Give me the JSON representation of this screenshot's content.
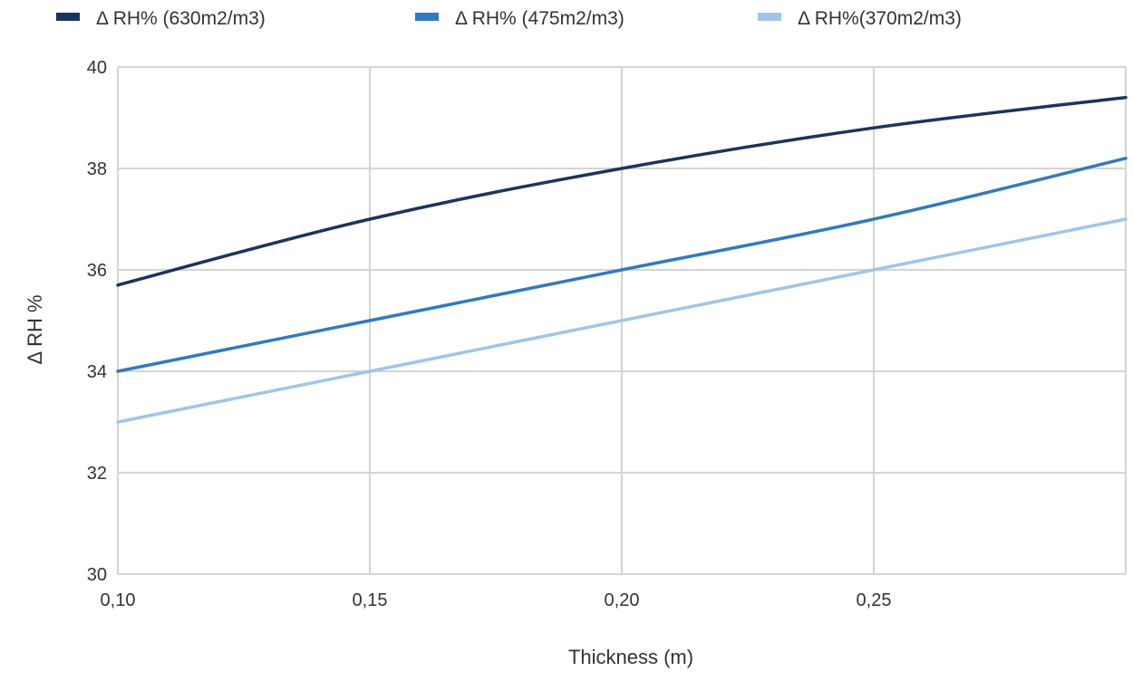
{
  "chart_data": {
    "type": "line",
    "title": "",
    "xlabel": "Thickness (m)",
    "ylabel": "Δ RH %",
    "x": [
      0.1,
      0.15,
      0.2,
      0.25,
      0.3
    ],
    "x_ticks": [
      0.1,
      0.15,
      0.2,
      0.25
    ],
    "x_tick_labels": [
      "0,10",
      "0,15",
      "0,20",
      "0,25"
    ],
    "xlim": [
      0.1,
      0.3
    ],
    "ylim": [
      30,
      40
    ],
    "y_ticks": [
      30,
      32,
      34,
      36,
      38,
      40
    ],
    "y_tick_labels": [
      "30",
      "32",
      "34",
      "36",
      "38",
      "40"
    ],
    "grid": true,
    "legend_position": "top",
    "series": [
      {
        "name": "Δ RH% (630m2/m3)",
        "color": "#1b3460",
        "values": [
          35.7,
          37.0,
          38.0,
          38.8,
          39.4
        ]
      },
      {
        "name": "Δ RH% (475m2/m3)",
        "color": "#2f7ac4",
        "values": [
          34.0,
          35.0,
          36.0,
          37.0,
          38.2
        ]
      },
      {
        "name": "Δ RH%(370m2/m3)",
        "color": "#9fc5eb",
        "values": [
          33.0,
          34.0,
          35.0,
          36.0,
          37.0
        ]
      }
    ]
  },
  "colors": {
    "grid": "#d4d4d4",
    "text": "#333333"
  }
}
